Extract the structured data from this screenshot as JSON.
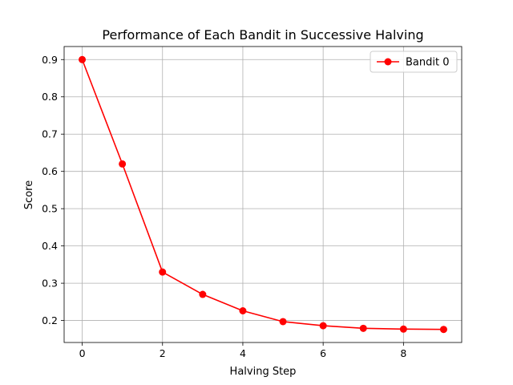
{
  "chart_data": {
    "type": "line",
    "title": "Performance of Each Bandit in Successive Halving",
    "xlabel": "Halving Step",
    "ylabel": "Score",
    "x": [
      0,
      1,
      2,
      3,
      4,
      5,
      6,
      7,
      8,
      9
    ],
    "series": [
      {
        "name": "Bandit 0",
        "color": "#ff0000",
        "marker": "circle",
        "values": [
          0.9,
          0.62,
          0.33,
          0.27,
          0.226,
          0.197,
          0.186,
          0.179,
          0.177,
          0.176
        ]
      }
    ],
    "xlim": [
      -0.45,
      9.45
    ],
    "ylim": [
      0.141,
      0.935
    ],
    "xticks": [
      0,
      2,
      4,
      6,
      8
    ],
    "yticks": [
      0.2,
      0.3,
      0.4,
      0.5,
      0.6,
      0.7,
      0.8,
      0.9
    ],
    "grid": true,
    "legend_position": "top-right"
  }
}
